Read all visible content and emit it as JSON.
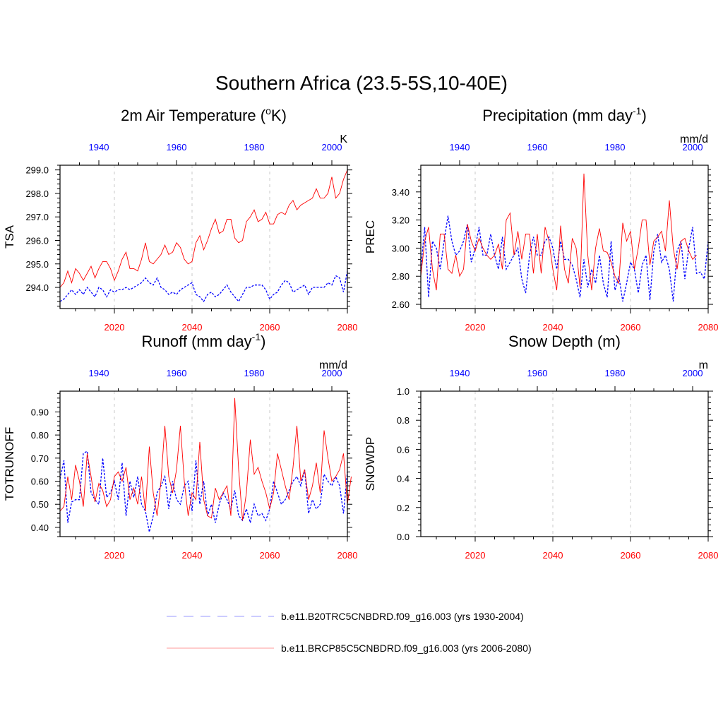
{
  "title": "Southern Africa (23.5-5S,10-40E)",
  "colors": {
    "historical": "#0000ff",
    "future": "#ff0000",
    "legend_historical": "#9999ff",
    "legend_future": "#ff9999"
  },
  "legend": [
    {
      "label": "b.e11.B20TRC5CNBDRD.f09_g16.003 (yrs 1930-2004)",
      "style": "dashed",
      "color": "#9999ff"
    },
    {
      "label": "b.e11.BRCP85C5CNBDRD.f09_g16.003 (yrs 2006-2080)",
      "style": "solid",
      "color": "#ff9999"
    }
  ],
  "chart_data": [
    {
      "type": "line",
      "title_main": "2m Air Temperature (",
      "title_sup": "o",
      "title_end": "K)",
      "units": "K",
      "ylabel": "TSA",
      "ylim": [
        293.1,
        299.2
      ],
      "yticks": [
        294.0,
        295.0,
        296.0,
        297.0,
        298.0,
        299.0
      ],
      "ytick_labels": [
        "294.0",
        "295.0",
        "296.0",
        "297.0",
        "298.0",
        "299.0"
      ],
      "bottom_xlim": [
        2006,
        2080
      ],
      "bottom_ticks": [
        2020,
        2040,
        2060,
        2080
      ],
      "top_xlim": [
        1930,
        2004
      ],
      "top_ticks": [
        1940,
        1960,
        1980,
        2000
      ],
      "series": [
        {
          "name": "b.e11.B20TRC5CNBDRD.f09_g16.003",
          "axis": "top",
          "style": "dashed",
          "color": "#0000ff",
          "values": [
            293.4,
            293.5,
            293.7,
            293.9,
            293.7,
            293.9,
            293.7,
            294.0,
            293.8,
            293.6,
            294.0,
            293.9,
            293.6,
            293.9,
            293.8,
            293.9,
            293.9,
            294.0,
            293.9,
            294.0,
            294.1,
            294.2,
            294.4,
            294.2,
            294.1,
            294.4,
            294.0,
            293.9,
            293.7,
            293.8,
            293.7,
            293.9,
            294.0,
            294.1,
            294.2,
            293.7,
            293.6,
            293.4,
            293.7,
            293.8,
            293.6,
            293.7,
            293.9,
            294.1,
            293.8,
            293.6,
            293.4,
            293.7,
            294.0,
            294.0,
            294.1,
            294.1,
            294.1,
            293.9,
            293.5,
            293.7,
            293.8,
            294.1,
            294.3,
            294.2,
            293.8,
            293.9,
            294.0,
            294.1,
            293.7,
            294.0,
            294.0,
            294.0,
            294.0,
            294.2,
            294.1,
            294.5,
            294.4,
            293.8,
            294.7
          ]
        },
        {
          "name": "b.e11.BRCP85C5CNBDRD.f09_g16.003",
          "axis": "bottom",
          "style": "solid",
          "color": "#ff0000",
          "values": [
            294.0,
            294.2,
            294.7,
            294.2,
            294.8,
            294.6,
            294.3,
            294.6,
            294.9,
            294.4,
            294.8,
            295.1,
            295.1,
            294.8,
            294.3,
            294.7,
            295.2,
            295.5,
            294.8,
            294.8,
            294.7,
            295.2,
            295.9,
            295.1,
            295.0,
            295.2,
            295.4,
            295.8,
            295.4,
            295.5,
            295.9,
            295.7,
            295.2,
            295.0,
            295.1,
            295.9,
            296.2,
            295.6,
            296.0,
            296.5,
            296.9,
            296.3,
            296.4,
            296.9,
            296.9,
            296.1,
            295.9,
            296.0,
            296.8,
            297.0,
            297.3,
            296.8,
            296.9,
            297.2,
            296.7,
            296.7,
            297.1,
            297.2,
            297.1,
            297.5,
            297.7,
            297.3,
            297.5,
            297.6,
            297.7,
            297.8,
            298.2,
            297.8,
            297.8,
            298.0,
            298.7,
            297.8,
            298.0,
            298.6,
            299.0
          ]
        }
      ]
    },
    {
      "type": "line",
      "title_main": "Precipitation (mm day",
      "title_sup": "-1",
      "title_end": ")",
      "units": "mm/d",
      "ylabel": "PREC",
      "ylim": [
        2.57,
        3.59
      ],
      "yticks": [
        2.6,
        2.8,
        3.0,
        3.2,
        3.4
      ],
      "ytick_labels": [
        "2.60",
        "2.80",
        "3.00",
        "3.20",
        "3.40"
      ],
      "bottom_xlim": [
        2006,
        2080
      ],
      "bottom_ticks": [
        2020,
        2040,
        2060,
        2080
      ],
      "top_xlim": [
        1930,
        2004
      ],
      "top_ticks": [
        1940,
        1960,
        1980,
        2000
      ],
      "series": [
        {
          "name": "b.e11.B20TRC5CNBDRD.f09_g16.003",
          "axis": "top",
          "style": "dashed",
          "color": "#0000ff",
          "values": [
            2.85,
            3.15,
            2.65,
            3.05,
            3.0,
            2.85,
            3.05,
            3.23,
            3.05,
            2.95,
            2.98,
            3.05,
            3.17,
            2.9,
            3.0,
            3.15,
            2.95,
            2.95,
            3.1,
            2.95,
            2.85,
            3.08,
            2.85,
            2.9,
            2.95,
            3.0,
            2.78,
            2.68,
            2.95,
            3.08,
            2.95,
            2.95,
            3.05,
            3.08,
            3.0,
            2.85,
            3.05,
            2.92,
            2.92,
            2.88,
            2.78,
            2.65,
            2.92,
            2.72,
            2.85,
            2.75,
            2.95,
            2.75,
            2.65,
            3.05,
            2.7,
            2.8,
            2.62,
            2.75,
            2.9,
            2.85,
            2.68,
            2.88,
            2.95,
            2.63,
            2.98,
            3.1,
            2.9,
            2.95,
            2.85,
            2.62,
            2.98,
            3.05,
            2.78,
            3.0,
            3.15,
            2.82,
            2.83,
            2.78,
            3.05
          ]
        },
        {
          "name": "b.e11.BRCP85C5CNBDRD.f09_g16.003",
          "axis": "bottom",
          "style": "solid",
          "color": "#ff0000",
          "values": [
            2.8,
            3.05,
            3.15,
            2.85,
            2.7,
            3.1,
            3.1,
            2.85,
            2.82,
            2.95,
            2.8,
            2.85,
            3.17,
            3.05,
            2.98,
            3.07,
            3.0,
            2.95,
            2.92,
            2.95,
            3.03,
            2.85,
            3.2,
            3.25,
            2.95,
            3.12,
            2.92,
            3.1,
            3.1,
            2.82,
            3.1,
            2.82,
            3.15,
            3.05,
            2.85,
            2.7,
            3.16,
            2.85,
            2.75,
            3.07,
            3.0,
            2.72,
            3.53,
            2.95,
            2.7,
            3.0,
            3.14,
            2.98,
            2.97,
            2.9,
            2.8,
            2.75,
            3.18,
            3.05,
            3.12,
            2.85,
            3.0,
            3.2,
            3.2,
            2.88,
            3.05,
            3.08,
            3.12,
            2.98,
            3.34,
            3.0,
            2.85,
            3.05,
            3.07,
            2.98,
            2.92,
            2.95
          ]
        }
      ]
    },
    {
      "type": "line",
      "title_main": "Runoff (mm day",
      "title_sup": "-1",
      "title_end": ")",
      "units": "mm/d",
      "ylabel": "TOTRUNOFF",
      "ylim": [
        0.36,
        0.99
      ],
      "yticks": [
        0.4,
        0.5,
        0.6,
        0.7,
        0.8,
        0.9
      ],
      "ytick_labels": [
        "0.40",
        "0.50",
        "0.60",
        "0.70",
        "0.80",
        "0.90"
      ],
      "bottom_xlim": [
        2006,
        2080
      ],
      "bottom_ticks": [
        2020,
        2040,
        2060,
        2080
      ],
      "top_xlim": [
        1930,
        2004
      ],
      "top_ticks": [
        1940,
        1960,
        1980,
        2000
      ],
      "series": [
        {
          "name": "b.e11.B20TRC5CNBDRD.f09_g16.003",
          "axis": "top",
          "style": "dashed",
          "color": "#0000ff",
          "values": [
            0.61,
            0.69,
            0.42,
            0.51,
            0.52,
            0.52,
            0.72,
            0.73,
            0.55,
            0.52,
            0.5,
            0.7,
            0.53,
            0.55,
            0.6,
            0.52,
            0.68,
            0.45,
            0.6,
            0.53,
            0.62,
            0.5,
            0.47,
            0.38,
            0.45,
            0.55,
            0.58,
            0.62,
            0.48,
            0.6,
            0.52,
            0.5,
            0.58,
            0.6,
            0.47,
            0.69,
            0.5,
            0.6,
            0.45,
            0.5,
            0.42,
            0.5,
            0.55,
            0.52,
            0.48,
            0.56,
            0.45,
            0.43,
            0.48,
            0.42,
            0.5,
            0.45,
            0.46,
            0.43,
            0.48,
            0.6,
            0.55,
            0.5,
            0.52,
            0.56,
            0.6,
            0.62,
            0.58,
            0.65,
            0.46,
            0.52,
            0.48,
            0.5,
            0.63,
            0.6,
            0.58,
            0.62,
            0.58,
            0.46,
            0.64
          ]
        },
        {
          "name": "b.e11.BRCP85C5CNBDRD.f09_g16.003",
          "axis": "bottom",
          "style": "solid",
          "color": "#ff0000",
          "values": [
            0.47,
            0.49,
            0.62,
            0.52,
            0.67,
            0.6,
            0.49,
            0.72,
            0.62,
            0.51,
            0.59,
            0.56,
            0.49,
            0.52,
            0.62,
            0.64,
            0.6,
            0.66,
            0.52,
            0.57,
            0.5,
            0.62,
            0.47,
            0.75,
            0.55,
            0.45,
            0.6,
            0.84,
            0.62,
            0.55,
            0.65,
            0.84,
            0.6,
            0.45,
            0.55,
            0.52,
            0.77,
            0.52,
            0.45,
            0.44,
            0.57,
            0.52,
            0.55,
            0.58,
            0.45,
            0.96,
            0.65,
            0.43,
            0.55,
            0.78,
            0.63,
            0.66,
            0.6,
            0.55,
            0.48,
            0.55,
            0.72,
            0.65,
            0.58,
            0.52,
            0.66,
            0.84,
            0.6,
            0.65,
            0.52,
            0.58,
            0.68,
            0.55,
            0.82,
            0.7,
            0.6,
            0.62,
            0.65,
            0.72,
            0.5,
            0.62
          ]
        }
      ]
    },
    {
      "type": "line",
      "title_main": "Snow Depth (m)",
      "title_sup": "",
      "title_end": "",
      "units": "m",
      "ylabel": "SNOWDP",
      "ylim": [
        0.0,
        1.0
      ],
      "yticks": [
        0.0,
        0.2,
        0.4,
        0.6,
        0.8,
        1.0
      ],
      "ytick_labels": [
        "0.0",
        "0.2",
        "0.4",
        "0.6",
        "0.8",
        "1.0"
      ],
      "bottom_xlim": [
        2006,
        2080
      ],
      "bottom_ticks": [
        2020,
        2040,
        2060,
        2080
      ],
      "top_xlim": [
        1930,
        2004
      ],
      "top_ticks": [
        1940,
        1960,
        1980,
        2000
      ],
      "series": []
    }
  ]
}
